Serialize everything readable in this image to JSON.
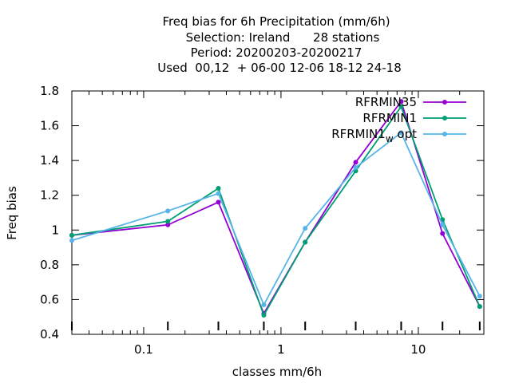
{
  "chart_data": {
    "type": "line",
    "title_lines": [
      "Freq bias  for 6h Precipitation (mm/6h)",
      "Selection: Ireland      28 stations",
      "Period: 20200203-20200217",
      "Used  00,12  + 06-00 12-06 18-12 24-18"
    ],
    "xlabel": "classes mm/6h",
    "ylabel": "Freq bias",
    "xscale": "log",
    "xlim": [
      0.03,
      30
    ],
    "ylim": [
      0.4,
      1.8
    ],
    "x_ticks": [
      0.1,
      1,
      10
    ],
    "x_tick_labels": [
      "0.1",
      "1",
      "10"
    ],
    "y_ticks": [
      0.4,
      0.6,
      0.8,
      1.0,
      1.2,
      1.4,
      1.6,
      1.8
    ],
    "y_tick_labels": [
      "0.4",
      "0.6",
      "0.8",
      "1",
      "1.2",
      "1.4",
      "1.6",
      "1.8"
    ],
    "grid": false,
    "legend_position": "top-right",
    "x": [
      0.03,
      0.15,
      0.35,
      0.75,
      1.5,
      3.5,
      7.5,
      15,
      28
    ],
    "series": [
      {
        "name": "RFRMIN35",
        "color": "#9400d3",
        "values": [
          0.97,
          1.03,
          1.16,
          0.52,
          0.93,
          1.39,
          1.74,
          0.98,
          0.56
        ]
      },
      {
        "name": "RFRMIN1",
        "color": "#009e73",
        "values": [
          0.97,
          1.05,
          1.24,
          0.51,
          0.93,
          1.34,
          1.71,
          1.06,
          0.56
        ]
      },
      {
        "name": "RFRMIN1_w_opt",
        "legend_main": "RFRMIN1",
        "legend_sub": "w",
        "legend_tail": "opt",
        "color": "#56b4e9",
        "values": [
          0.94,
          1.11,
          1.21,
          0.57,
          1.01,
          1.36,
          1.56,
          1.03,
          0.62
        ]
      }
    ]
  }
}
